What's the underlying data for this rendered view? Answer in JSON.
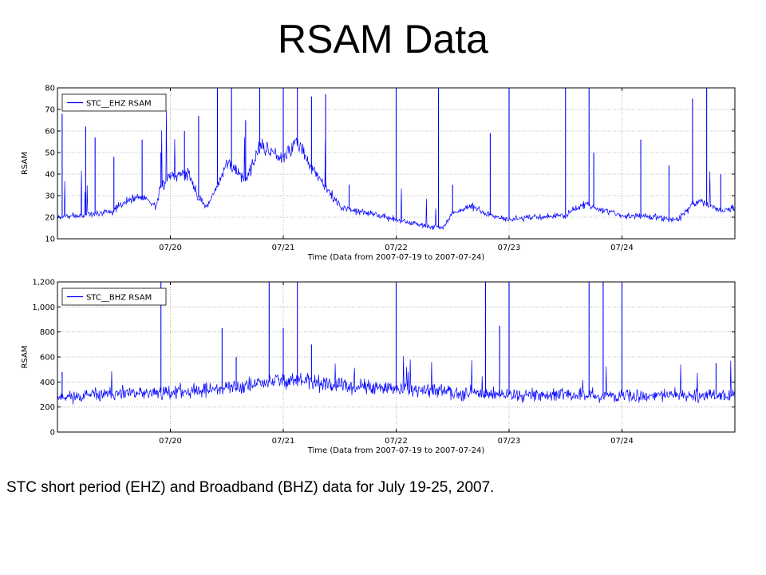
{
  "page": {
    "title": "RSAM Data",
    "caption": "STC short period (EHZ) and Broadband (BHZ) data for July 19-25, 2007."
  },
  "colors": {
    "series": "#0000ff",
    "grid": "#a0a0a0",
    "axis": "#000000"
  },
  "chart_data": [
    {
      "type": "line",
      "title": "",
      "xlabel": "Time (Data from 2007-07-19 to 2007-07-24)",
      "ylabel": "RSAM",
      "x_range": [
        "2007-07-19 00:00",
        "2007-07-25 00:00"
      ],
      "x_ticks": [
        "07/20",
        "07/21",
        "07/22",
        "07/23",
        "07/24"
      ],
      "ylim": [
        10,
        80
      ],
      "y_ticks": [
        "10",
        "20",
        "30",
        "40",
        "50",
        "60",
        "70",
        "80"
      ],
      "grid": "dotted",
      "legend": "top-left",
      "series": [
        {
          "name": "STC__EHZ RSAM",
          "color": "#0000ff",
          "baseline": [
            [
              "2007-07-19 00:00",
              20
            ],
            [
              "2007-07-19 06:00",
              21
            ],
            [
              "2007-07-19 12:00",
              23
            ],
            [
              "2007-07-19 15:00",
              28
            ],
            [
              "2007-07-19 18:00",
              30
            ],
            [
              "2007-07-19 21:00",
              25
            ],
            [
              "2007-07-19 22:00",
              34
            ],
            [
              "2007-07-20 00:00",
              40
            ],
            [
              "2007-07-20 04:00",
              40
            ],
            [
              "2007-07-20 06:00",
              29
            ],
            [
              "2007-07-20 08:00",
              25
            ],
            [
              "2007-07-20 12:00",
              45
            ],
            [
              "2007-07-20 14:00",
              42
            ],
            [
              "2007-07-20 16:00",
              37
            ],
            [
              "2007-07-20 19:00",
              53
            ],
            [
              "2007-07-21 00:00",
              48
            ],
            [
              "2007-07-21 03:00",
              55
            ],
            [
              "2007-07-21 06:00",
              43
            ],
            [
              "2007-07-21 12:00",
              25
            ],
            [
              "2007-07-21 18:00",
              22
            ],
            [
              "2007-07-22 00:00",
              19
            ],
            [
              "2007-07-22 06:00",
              16
            ],
            [
              "2007-07-22 10:00",
              15
            ],
            [
              "2007-07-22 12:00",
              22
            ],
            [
              "2007-07-22 16:00",
              25
            ],
            [
              "2007-07-22 20:00",
              21
            ],
            [
              "2007-07-23 00:00",
              19
            ],
            [
              "2007-07-23 12:00",
              21
            ],
            [
              "2007-07-23 16:00",
              26
            ],
            [
              "2007-07-23 20:00",
              23
            ],
            [
              "2007-07-24 00:00",
              21
            ],
            [
              "2007-07-24 12:00",
              19
            ],
            [
              "2007-07-24 15:00",
              26
            ],
            [
              "2007-07-24 17:00",
              27
            ],
            [
              "2007-07-24 21:00",
              23
            ],
            [
              "2007-07-25 00:00",
              24
            ]
          ],
          "spikes": [
            [
              "2007-07-19 01:00",
              68
            ],
            [
              "2007-07-19 06:00",
              62
            ],
            [
              "2007-07-19 08:00",
              57
            ],
            [
              "2007-07-19 12:00",
              48
            ],
            [
              "2007-07-19 18:00",
              56
            ],
            [
              "2007-07-19 22:00",
              50
            ],
            [
              "2007-07-20 03:00",
              60
            ],
            [
              "2007-07-20 06:00",
              67
            ],
            [
              "2007-07-20 10:00",
              80
            ],
            [
              "2007-07-20 13:00",
              80
            ],
            [
              "2007-07-20 16:00",
              65
            ],
            [
              "2007-07-20 19:00",
              80
            ],
            [
              "2007-07-21 00:00",
              80
            ],
            [
              "2007-07-21 03:00",
              80
            ],
            [
              "2007-07-21 06:00",
              76
            ],
            [
              "2007-07-21 09:00",
              77
            ],
            [
              "2007-07-21 14:00",
              35
            ],
            [
              "2007-07-22 00:00",
              80
            ],
            [
              "2007-07-22 09:00",
              80
            ],
            [
              "2007-07-22 12:00",
              35
            ],
            [
              "2007-07-22 20:00",
              59
            ],
            [
              "2007-07-23 00:00",
              80
            ],
            [
              "2007-07-23 12:00",
              80
            ],
            [
              "2007-07-23 17:00",
              80
            ],
            [
              "2007-07-23 18:00",
              50
            ],
            [
              "2007-07-24 04:00",
              56
            ],
            [
              "2007-07-24 10:00",
              44
            ],
            [
              "2007-07-24 15:00",
              75
            ],
            [
              "2007-07-24 18:00",
              80
            ],
            [
              "2007-07-24 21:00",
              40
            ]
          ]
        }
      ]
    },
    {
      "type": "line",
      "title": "",
      "xlabel": "Time (Data from 2007-07-19 to 2007-07-24)",
      "ylabel": "RSAM",
      "x_range": [
        "2007-07-19 00:00",
        "2007-07-25 00:00"
      ],
      "x_ticks": [
        "07/20",
        "07/21",
        "07/22",
        "07/23",
        "07/24"
      ],
      "ylim": [
        0,
        1200
      ],
      "y_ticks": [
        "0",
        "200",
        "400",
        "600",
        "800",
        "1,000",
        "1,200"
      ],
      "grid": "dotted",
      "legend": "top-left",
      "series": [
        {
          "name": "STC__BHZ RSAM",
          "color": "#0000ff",
          "baseline": [
            [
              "2007-07-19 00:00",
              280
            ],
            [
              "2007-07-19 12:00",
              300
            ],
            [
              "2007-07-20 00:00",
              320
            ],
            [
              "2007-07-20 12:00",
              350
            ],
            [
              "2007-07-20 18:00",
              380
            ],
            [
              "2007-07-21 00:00",
              420
            ],
            [
              "2007-07-21 06:00",
              400
            ],
            [
              "2007-07-21 12:00",
              370
            ],
            [
              "2007-07-22 00:00",
              340
            ],
            [
              "2007-07-22 12:00",
              320
            ],
            [
              "2007-07-23 00:00",
              300
            ],
            [
              "2007-07-24 00:00",
              290
            ],
            [
              "2007-07-25 00:00",
              300
            ]
          ],
          "spikes": [
            [
              "2007-07-19 01:00",
              480
            ],
            [
              "2007-07-19 22:00",
              1200
            ],
            [
              "2007-07-20 11:00",
              830
            ],
            [
              "2007-07-20 14:00",
              600
            ],
            [
              "2007-07-20 21:00",
              1200
            ],
            [
              "2007-07-21 00:00",
              830
            ],
            [
              "2007-07-21 03:00",
              1200
            ],
            [
              "2007-07-21 06:00",
              700
            ],
            [
              "2007-07-22 00:00",
              1200
            ],
            [
              "2007-07-22 19:00",
              1200
            ],
            [
              "2007-07-22 22:00",
              850
            ],
            [
              "2007-07-23 00:00",
              1200
            ],
            [
              "2007-07-23 17:00",
              1200
            ],
            [
              "2007-07-23 20:00",
              1200
            ],
            [
              "2007-07-24 00:00",
              1200
            ],
            [
              "2007-07-24 20:00",
              550
            ]
          ]
        }
      ]
    }
  ]
}
